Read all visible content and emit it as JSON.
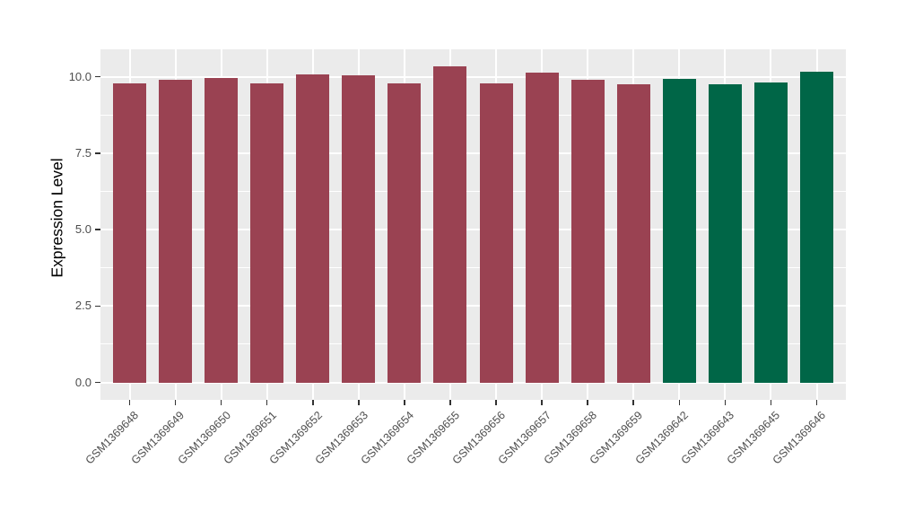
{
  "chart_data": {
    "type": "bar",
    "title": "",
    "xlabel": "",
    "ylabel": "Expression Level",
    "categories": [
      "GSM1369648",
      "GSM1369649",
      "GSM1369650",
      "GSM1369651",
      "GSM1369652",
      "GSM1369653",
      "GSM1369654",
      "GSM1369655",
      "GSM1369656",
      "GSM1369657",
      "GSM1369658",
      "GSM1369659",
      "GSM1369642",
      "GSM1369643",
      "GSM1369645",
      "GSM1369646"
    ],
    "values": [
      9.78,
      9.9,
      9.97,
      9.78,
      10.09,
      10.04,
      9.79,
      10.34,
      9.79,
      10.15,
      9.9,
      9.77,
      9.92,
      9.75,
      9.8,
      10.18
    ],
    "bar_colors": [
      "#9A4252",
      "#9A4252",
      "#9A4252",
      "#9A4252",
      "#9A4252",
      "#9A4252",
      "#9A4252",
      "#9A4252",
      "#9A4252",
      "#9A4252",
      "#9A4252",
      "#9A4252",
      "#006647",
      "#006647",
      "#006647",
      "#006647"
    ],
    "group_colors": {
      "group1": "#9A4252",
      "group2": "#006647"
    },
    "ytick_values": [
      0.0,
      2.5,
      5.0,
      7.5,
      10.0
    ],
    "ytick_labels": [
      "0.0",
      "2.5",
      "5.0",
      "7.5",
      "10.0"
    ],
    "y_minor_ticks": [
      1.25,
      3.75,
      6.25,
      8.75
    ],
    "ylim": [
      -0.57,
      10.9
    ],
    "grid": "on",
    "legend": "none",
    "panel_bg": "#EBEBEB",
    "grid_color": "#FFFFFF",
    "axis_text_color": "#4d4d4d"
  }
}
